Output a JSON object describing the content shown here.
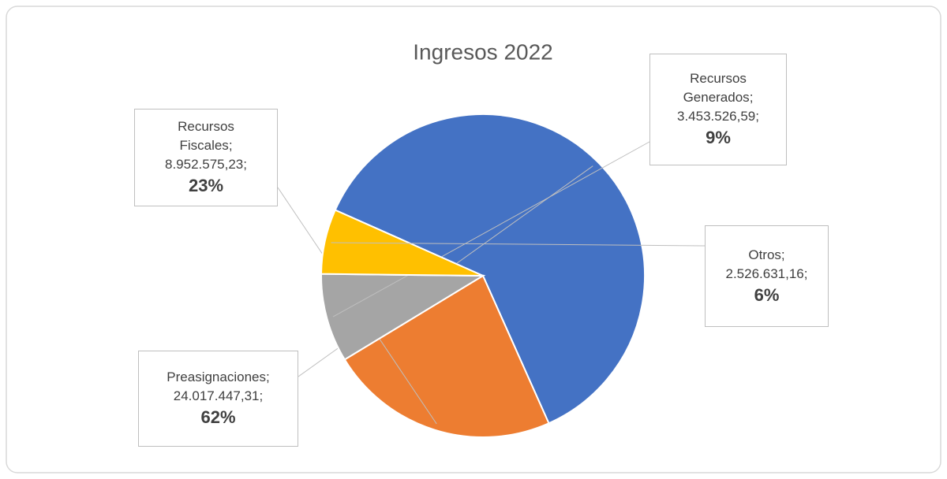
{
  "chart_data": {
    "type": "pie",
    "title": "Ingresos 2022",
    "categories": [
      "Preasignaciones",
      "Recursos Fiscales",
      "Recursos Generados",
      "Otros"
    ],
    "values": [
      24017447.31,
      8952575.23,
      3453526.59,
      2526631.16
    ],
    "value_labels": [
      "24.017.447,31",
      "8.952.575,23",
      "3.453.526,59",
      "2.526.631,16"
    ],
    "percentages": [
      62,
      23,
      9,
      6
    ],
    "percentage_labels": [
      "62%",
      "23%",
      "9%",
      "6%"
    ],
    "label_separator": ";",
    "colors": [
      "#4472c4",
      "#ed7d31",
      "#a5a5a5",
      "#ffc000"
    ]
  }
}
